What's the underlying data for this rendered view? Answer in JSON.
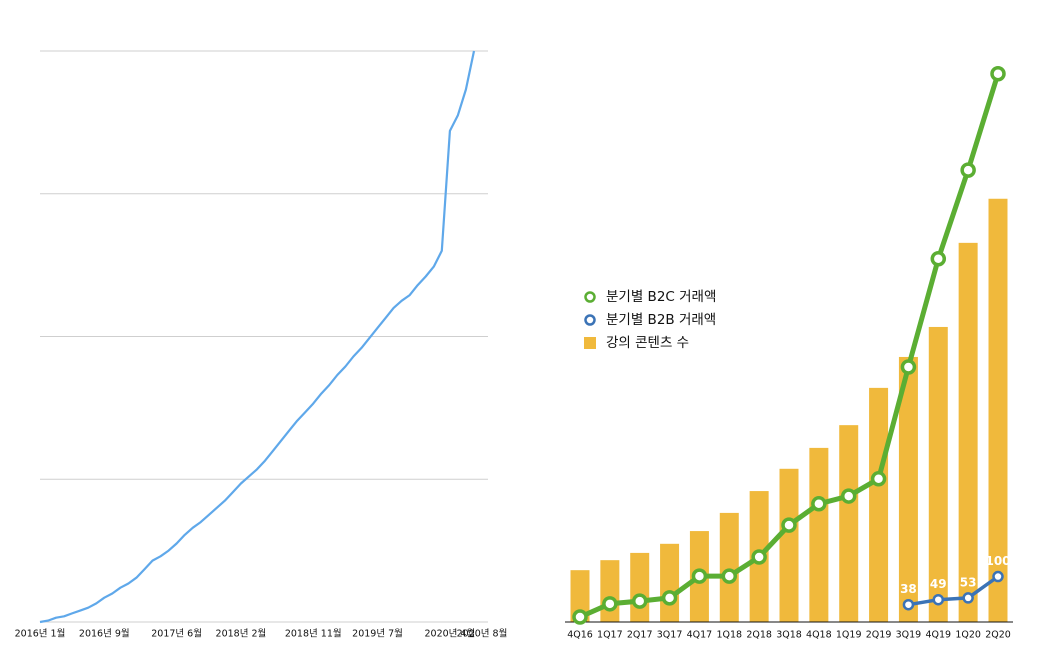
{
  "chart_data": [
    {
      "type": "line",
      "categories": [
        "2016년 1월",
        null,
        null,
        null,
        null,
        null,
        null,
        null,
        "2016년 9월",
        null,
        null,
        null,
        null,
        null,
        null,
        null,
        null,
        "2017년 6월",
        null,
        null,
        null,
        null,
        null,
        null,
        null,
        "2018년 2월",
        null,
        null,
        null,
        null,
        null,
        null,
        null,
        null,
        "2018년 11월",
        null,
        null,
        null,
        null,
        null,
        null,
        null,
        "2019년 7월",
        null,
        null,
        null,
        null,
        null,
        null,
        null,
        null,
        "2020년 4월",
        null,
        null,
        null,
        "2020년 8월"
      ],
      "values": [
        0,
        0.01,
        0.03,
        0.04,
        0.06,
        0.08,
        0.1,
        0.13,
        0.17,
        0.2,
        0.24,
        0.27,
        0.31,
        0.37,
        0.43,
        0.46,
        0.5,
        0.55,
        0.61,
        0.66,
        0.7,
        0.75,
        0.8,
        0.85,
        0.91,
        0.97,
        1.02,
        1.07,
        1.13,
        1.2,
        1.27,
        1.34,
        1.41,
        1.47,
        1.53,
        1.6,
        1.66,
        1.73,
        1.79,
        1.86,
        1.92,
        1.99,
        2.06,
        2.13,
        2.2,
        2.25,
        2.29,
        2.36,
        2.42,
        2.49,
        2.6,
        3.44,
        3.55,
        3.73,
        4.0,
        null
      ],
      "color": "#5fa8ea",
      "ylim": [
        0,
        4
      ],
      "yticks": [
        0,
        1,
        2,
        3,
        4
      ],
      "ytick_labels": false,
      "grid": true
    },
    {
      "type": "combo",
      "categories": [
        "4Q16",
        "1Q17",
        "2Q17",
        "3Q17",
        "4Q17",
        "1Q18",
        "2Q18",
        "3Q18",
        "4Q18",
        "1Q19",
        "2Q19",
        "3Q19",
        "4Q19",
        "1Q20",
        "2Q20"
      ],
      "series": [
        {
          "name": "분기별 B2C 거래액",
          "type": "line",
          "color": "#5bae33",
          "values": [
            11,
            40,
            46,
            53,
            101,
            101,
            143,
            213,
            260,
            277,
            315,
            561,
            799,
            994,
            1206
          ]
        },
        {
          "name": "분기별 B2B 거래액",
          "type": "line",
          "color": "#3b73b6",
          "values": [
            null,
            null,
            null,
            null,
            null,
            null,
            null,
            null,
            null,
            null,
            null,
            38,
            49,
            53,
            100
          ],
          "data_labels": true
        },
        {
          "name": "강의 콘텐츠 수",
          "type": "bar",
          "color": "#f0b93c",
          "values": [
            114,
            136,
            152,
            172,
            200,
            240,
            288,
            337,
            383,
            433,
            515,
            583,
            649,
            834,
            931
          ]
        }
      ],
      "ylim": [
        0,
        1300
      ],
      "legend": "left"
    }
  ]
}
